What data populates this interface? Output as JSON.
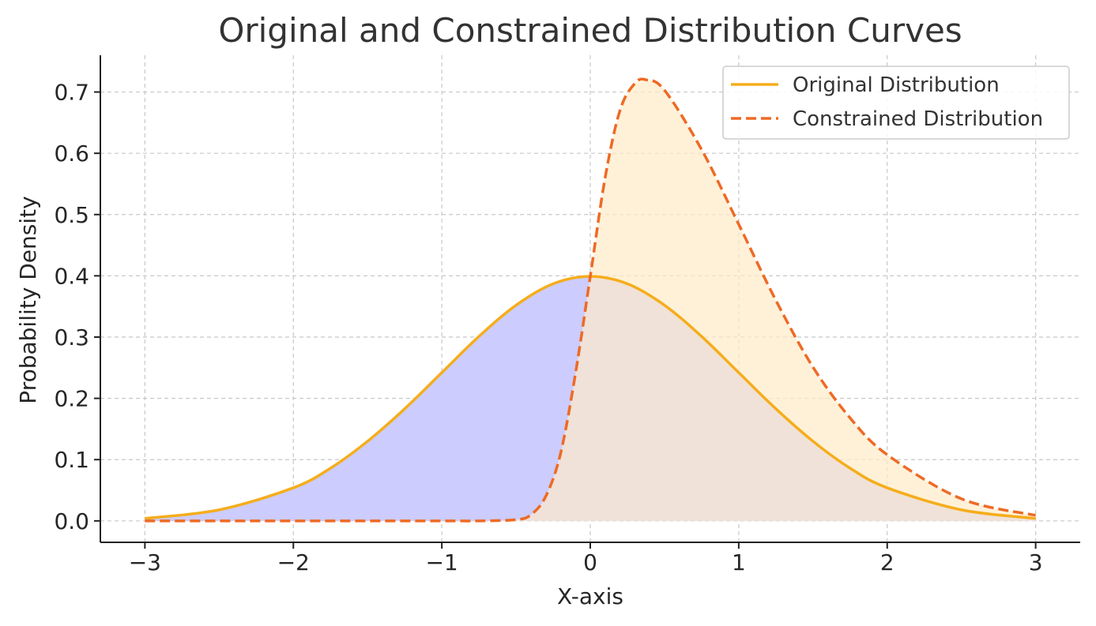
{
  "chart_data": {
    "type": "line",
    "title": "Original and Constrained Distribution Curves",
    "xlabel": "X-axis",
    "ylabel": "Probability Density",
    "xlim": [
      -3.3,
      3.3
    ],
    "ylim": [
      -0.035,
      0.76
    ],
    "x_ticks": [
      -3,
      -2,
      -1,
      0,
      1,
      2,
      3
    ],
    "x_tick_labels": [
      "−3",
      "−2",
      "−1",
      "0",
      "1",
      "2",
      "3"
    ],
    "y_ticks": [
      0.0,
      0.1,
      0.2,
      0.3,
      0.4,
      0.5,
      0.6,
      0.7
    ],
    "y_tick_labels": [
      "0.0",
      "0.1",
      "0.2",
      "0.3",
      "0.4",
      "0.5",
      "0.6",
      "0.7"
    ],
    "grid": true,
    "legend_position": "top-right",
    "series": [
      {
        "name": "Original Distribution",
        "style": "solid",
        "color": "#F5AD1B",
        "fill_color": "#CCCCFF",
        "x": [
          -3.0,
          -2.5,
          -2.0,
          -1.75,
          -1.5,
          -1.25,
          -1.0,
          -0.75,
          -0.5,
          -0.25,
          0.0,
          0.25,
          0.5,
          0.75,
          1.0,
          1.25,
          1.5,
          1.75,
          2.0,
          2.5,
          3.0
        ],
        "y": [
          0.004,
          0.018,
          0.054,
          0.086,
          0.13,
          0.183,
          0.242,
          0.301,
          0.352,
          0.387,
          0.399,
          0.387,
          0.352,
          0.301,
          0.242,
          0.183,
          0.13,
          0.086,
          0.054,
          0.018,
          0.004
        ]
      },
      {
        "name": "Constrained Distribution",
        "style": "dashed",
        "color": "#EE6A25",
        "fill_color": "#FFEBC8",
        "x": [
          -3.0,
          -2.5,
          -2.0,
          -1.5,
          -1.0,
          -0.75,
          -0.5,
          -0.4,
          -0.3,
          -0.2,
          -0.1,
          0.0,
          0.1,
          0.2,
          0.3,
          0.375,
          0.5,
          0.75,
          1.0,
          1.25,
          1.5,
          1.75,
          2.0,
          2.5,
          3.0
        ],
        "y": [
          0.0,
          0.0,
          0.0,
          0.0,
          0.0,
          0.0,
          0.002,
          0.01,
          0.04,
          0.11,
          0.24,
          0.399,
          0.56,
          0.67,
          0.714,
          0.72,
          0.703,
          0.606,
          0.484,
          0.36,
          0.251,
          0.168,
          0.108,
          0.036,
          0.009
        ]
      }
    ]
  }
}
